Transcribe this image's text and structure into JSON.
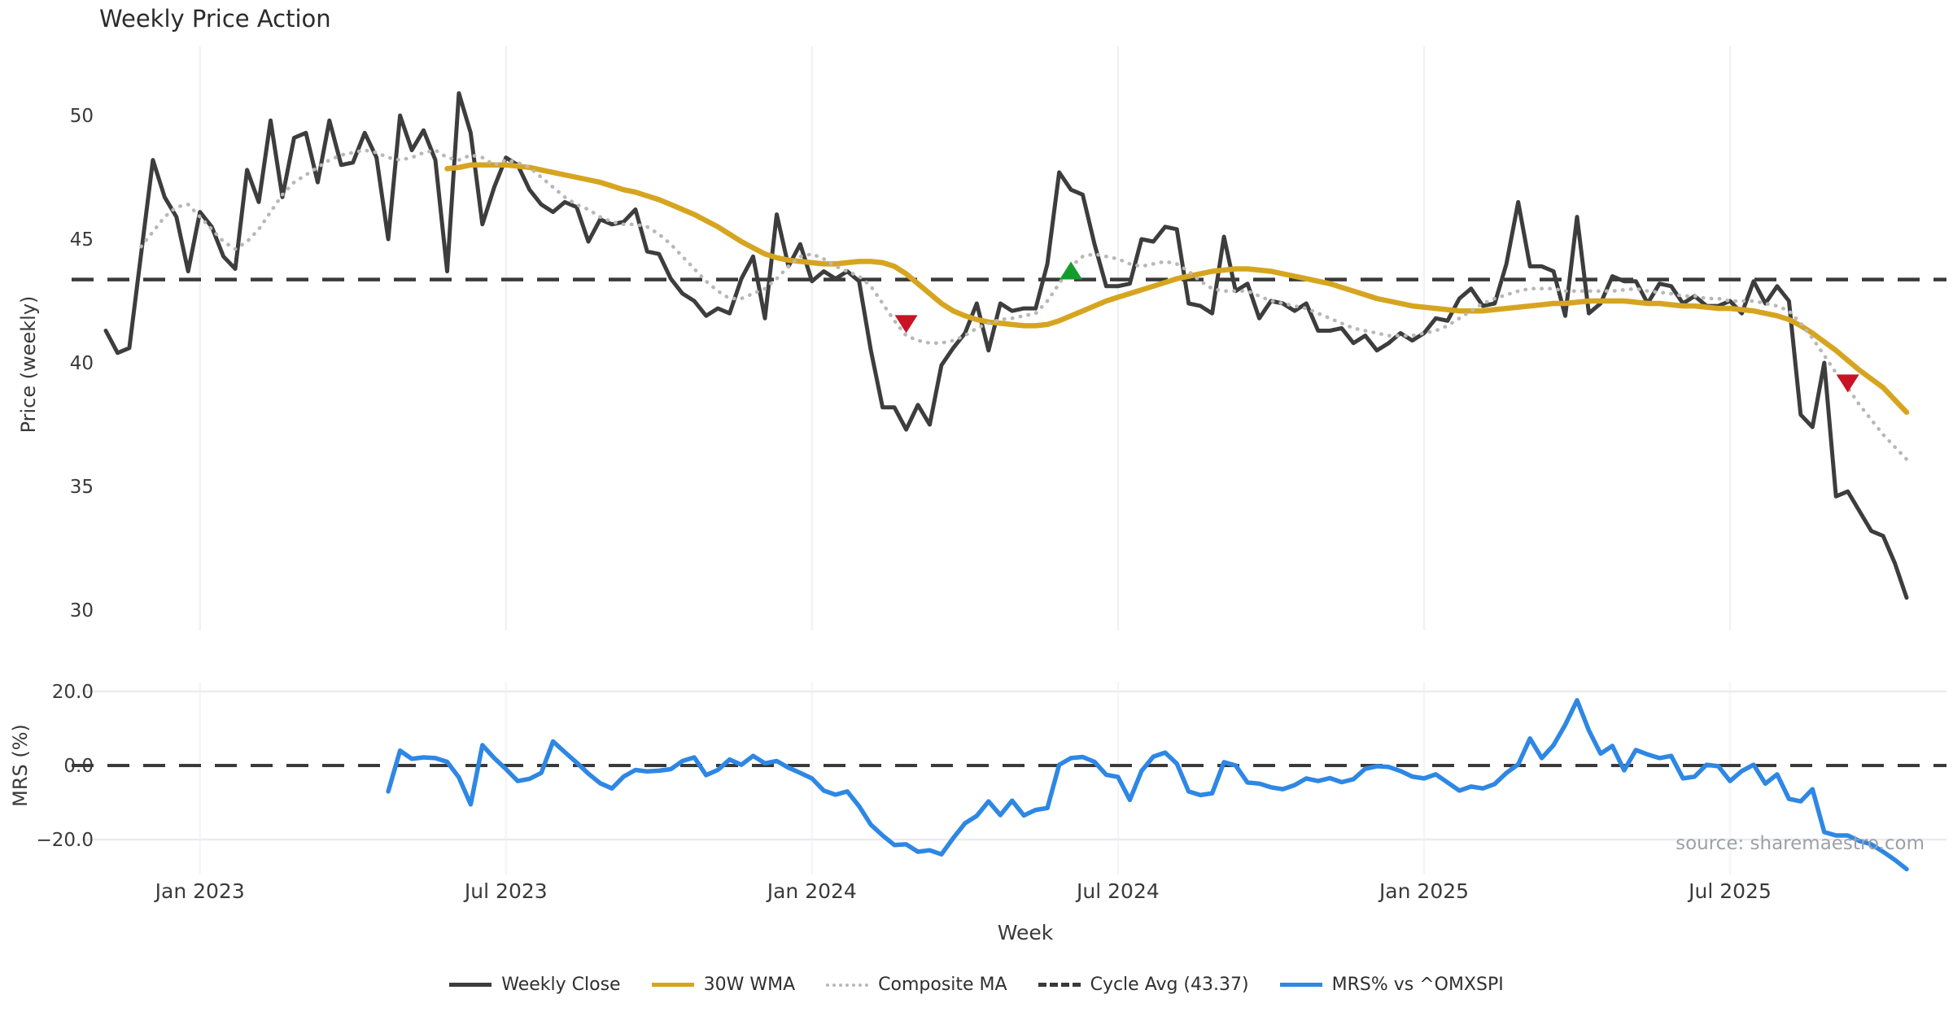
{
  "title": "Weekly Price Action",
  "source_note": "source: sharemaestro.com",
  "axes": {
    "x_label": "Week",
    "price_axis_label": "Price (weekly)",
    "mrs_axis_label": "MRS (%)"
  },
  "legend": [
    {
      "label": "Weekly Close",
      "style": "solid",
      "color": "#3d3d3d"
    },
    {
      "label": "30W WMA",
      "style": "solid",
      "color": "#d6a520"
    },
    {
      "label": "Composite MA",
      "style": "dotted",
      "color": "#b8b8b8"
    },
    {
      "label": "Cycle Avg (43.37)",
      "style": "dashed",
      "color": "#3a3a3a"
    },
    {
      "label": "MRS% vs ^OMXSPI",
      "style": "solid",
      "color": "#2e87e4"
    }
  ],
  "chart_data": {
    "type": "line",
    "title": "Weekly Price Action",
    "xlabel": "Week",
    "n_weeks": 154,
    "x_tick_labels": [
      "Jan 2023",
      "Jul 2023",
      "Jan 2024",
      "Jul 2024",
      "Jan 2025",
      "Jul 2025"
    ],
    "x_tick_indices": [
      8,
      34,
      60,
      86,
      112,
      138
    ],
    "cycle_avg": 43.37,
    "panels": [
      {
        "name": "price",
        "ylabel": "Price (weekly)",
        "ylim": [
          29.5,
          52.5
        ],
        "yticks": [
          30,
          35,
          40,
          45,
          50
        ],
        "ytick_labels": [
          "30",
          "35",
          "40",
          "45",
          "50"
        ],
        "grid": "vertical"
      },
      {
        "name": "mrs",
        "ylabel": "MRS (%)",
        "ylim": [
          -30,
          23
        ],
        "yticks": [
          -20,
          0,
          20
        ],
        "ytick_labels": [
          "−20.0",
          "0.0",
          "20.0"
        ],
        "grid": "horizontal",
        "zero_line": 0
      }
    ],
    "series": [
      {
        "name": "Weekly Close",
        "panel": "price",
        "color": "#3d3d3d",
        "line_style": "solid",
        "width": 5,
        "start_index": 0,
        "values": [
          41.3,
          40.4,
          40.6,
          44.4,
          48.2,
          46.7,
          45.9,
          43.7,
          46.1,
          45.5,
          44.3,
          43.8,
          47.8,
          46.5,
          49.8,
          46.7,
          49.1,
          49.3,
          47.3,
          49.8,
          48.0,
          48.1,
          49.3,
          48.3,
          45.0,
          50.0,
          48.6,
          49.4,
          48.2,
          43.7,
          50.9,
          49.3,
          45.6,
          47.1,
          48.3,
          48.0,
          47.0,
          46.4,
          46.1,
          46.5,
          46.3,
          44.9,
          45.8,
          45.6,
          45.7,
          46.2,
          44.5,
          44.4,
          43.4,
          42.8,
          42.5,
          41.9,
          42.2,
          42.0,
          43.4,
          44.3,
          41.8,
          46.0,
          43.9,
          44.8,
          43.3,
          43.7,
          43.4,
          43.7,
          43.3,
          40.5,
          38.2,
          38.2,
          37.3,
          38.3,
          37.5,
          39.9,
          40.6,
          41.2,
          42.4,
          40.5,
          42.4,
          42.1,
          42.2,
          42.2,
          44.0,
          47.7,
          47.0,
          46.8,
          44.8,
          43.1,
          43.1,
          43.2,
          45.0,
          44.9,
          45.5,
          45.4,
          42.4,
          42.3,
          42.0,
          45.1,
          42.9,
          43.2,
          41.8,
          42.5,
          42.4,
          42.1,
          42.4,
          41.3,
          41.3,
          41.4,
          40.8,
          41.1,
          40.5,
          40.8,
          41.2,
          40.9,
          41.2,
          41.8,
          41.7,
          42.6,
          43.0,
          42.3,
          42.4,
          44.0,
          46.5,
          43.9,
          43.9,
          43.7,
          41.9,
          45.9,
          42.0,
          42.4,
          43.5,
          43.3,
          43.3,
          42.4,
          43.2,
          43.1,
          42.4,
          42.7,
          42.3,
          42.3,
          42.5,
          42.0,
          43.3,
          42.4,
          43.1,
          42.5,
          37.9,
          37.4,
          40.0,
          34.6,
          34.8,
          34.0,
          33.2,
          33.0,
          31.9,
          30.5
        ]
      },
      {
        "name": "30W WMA",
        "panel": "price",
        "color": "#d6a520",
        "line_style": "solid",
        "width": 6.5,
        "start_index": 29,
        "values": [
          47.85,
          47.9,
          48.0,
          48.0,
          48.0,
          48.0,
          47.95,
          47.9,
          47.8,
          47.7,
          47.6,
          47.5,
          47.4,
          47.3,
          47.15,
          47.0,
          46.9,
          46.75,
          46.6,
          46.4,
          46.2,
          46.0,
          45.75,
          45.5,
          45.2,
          44.9,
          44.65,
          44.4,
          44.25,
          44.15,
          44.1,
          44.05,
          44.0,
          44.0,
          44.05,
          44.1,
          44.1,
          44.05,
          43.9,
          43.6,
          43.2,
          42.8,
          42.4,
          42.1,
          41.9,
          41.75,
          41.65,
          41.6,
          41.55,
          41.5,
          41.5,
          41.55,
          41.7,
          41.9,
          42.1,
          42.3,
          42.5,
          42.65,
          42.8,
          42.95,
          43.1,
          43.25,
          43.4,
          43.5,
          43.6,
          43.7,
          43.75,
          43.8,
          43.8,
          43.75,
          43.7,
          43.6,
          43.5,
          43.4,
          43.3,
          43.2,
          43.05,
          42.9,
          42.75,
          42.6,
          42.5,
          42.4,
          42.3,
          42.25,
          42.2,
          42.15,
          42.1,
          42.1,
          42.1,
          42.15,
          42.2,
          42.25,
          42.3,
          42.35,
          42.4,
          42.4,
          42.45,
          42.5,
          42.5,
          42.5,
          42.5,
          42.45,
          42.4,
          42.4,
          42.35,
          42.3,
          42.3,
          42.25,
          42.2,
          42.2,
          42.15,
          42.1,
          42.0,
          41.9,
          41.75,
          41.5,
          41.2,
          40.85,
          40.5,
          40.1,
          39.7,
          39.35,
          39.0,
          38.5,
          38.0
        ]
      },
      {
        "name": "Composite MA",
        "panel": "price",
        "color": "#b8b8b8",
        "line_style": "dotted",
        "width": 4.5,
        "start_index": 3,
        "values": [
          44.7,
          45.3,
          45.9,
          46.3,
          46.4,
          45.9,
          45.4,
          44.9,
          44.6,
          44.9,
          45.4,
          46.1,
          46.8,
          47.3,
          47.6,
          47.9,
          48.2,
          48.4,
          48.5,
          48.6,
          48.5,
          48.3,
          48.2,
          48.3,
          48.5,
          48.6,
          48.3,
          48.2,
          48.4,
          48.3,
          48.0,
          48.2,
          48.1,
          47.9,
          47.5,
          47.1,
          46.7,
          46.4,
          46.2,
          45.9,
          45.7,
          45.6,
          45.6,
          45.5,
          45.2,
          44.8,
          44.3,
          43.8,
          43.3,
          42.9,
          42.6,
          42.6,
          42.8,
          43.0,
          43.4,
          43.9,
          44.3,
          44.4,
          44.2,
          43.9,
          43.7,
          43.5,
          43.1,
          42.4,
          41.7,
          41.1,
          40.9,
          40.8,
          40.8,
          40.9,
          41.1,
          41.4,
          41.6,
          41.75,
          41.8,
          41.9,
          42.0,
          42.5,
          43.2,
          43.9,
          44.3,
          44.4,
          44.3,
          44.2,
          44.0,
          43.9,
          44.0,
          44.1,
          44.0,
          43.7,
          43.3,
          43.0,
          42.9,
          42.9,
          42.9,
          42.7,
          42.5,
          42.4,
          42.3,
          42.2,
          42.0,
          41.8,
          41.6,
          41.4,
          41.3,
          41.2,
          41.1,
          41.1,
          41.1,
          41.2,
          41.3,
          41.5,
          41.8,
          42.1,
          42.4,
          42.6,
          42.75,
          42.9,
          43.0,
          43.0,
          43.0,
          42.9,
          42.9,
          42.9,
          42.9,
          42.9,
          42.95,
          43.0,
          42.9,
          42.85,
          42.8,
          42.7,
          42.7,
          42.6,
          42.6,
          42.5,
          42.5,
          42.5,
          42.4,
          42.3,
          42.1,
          41.6,
          41.0,
          40.3,
          39.6,
          39.0,
          38.3,
          37.7,
          37.1,
          36.6,
          36.1
        ]
      },
      {
        "name": "MRS% vs ^OMXSPI",
        "panel": "mrs",
        "color": "#2e87e4",
        "line_style": "solid",
        "width": 5.5,
        "start_index": 24,
        "values": [
          -7.0,
          4.0,
          1.8,
          2.2,
          2.0,
          1.0,
          -3.2,
          -10.5,
          5.5,
          2.0,
          -1.0,
          -4.2,
          -3.6,
          -2.0,
          6.5,
          3.6,
          0.8,
          -2.2,
          -4.8,
          -6.2,
          -3.0,
          -1.2,
          -1.6,
          -1.4,
          -1.0,
          1.2,
          2.2,
          -2.6,
          -1.2,
          1.6,
          0.2,
          2.6,
          0.6,
          1.2,
          -0.6,
          -2.0,
          -3.5,
          -6.8,
          -7.9,
          -7.0,
          -11.0,
          -16.0,
          -18.9,
          -21.5,
          -21.3,
          -23.3,
          -22.9,
          -24.0,
          -19.6,
          -15.6,
          -13.6,
          -9.7,
          -13.4,
          -9.5,
          -13.5,
          -12.0,
          -11.5,
          0.2,
          2.0,
          2.3,
          1.0,
          -2.5,
          -3.1,
          -9.3,
          -1.5,
          2.4,
          3.5,
          0.5,
          -7.0,
          -8.0,
          -7.5,
          0.9,
          0.0,
          -4.6,
          -4.9,
          -5.9,
          -6.4,
          -5.3,
          -3.5,
          -4.2,
          -3.4,
          -4.5,
          -3.7,
          -0.9,
          -0.2,
          -0.4,
          -1.5,
          -3.0,
          -3.5,
          -2.4,
          -4.6,
          -6.8,
          -5.7,
          -6.2,
          -5.0,
          -2.0,
          0.3,
          7.3,
          2.0,
          5.5,
          11.0,
          17.6,
          9.5,
          3.2,
          5.3,
          -1.3,
          4.2,
          3.0,
          2.0,
          2.6,
          -3.5,
          -3.0,
          0.2,
          -0.2,
          -4.2,
          -1.5,
          0.2,
          -4.9,
          -2.4,
          -9.0,
          -9.7,
          -6.4,
          -18.0,
          -18.9,
          -18.9,
          -20.4,
          -21.3,
          -23.3,
          -25.5,
          -28.0
        ]
      }
    ],
    "markers": [
      {
        "index": 68,
        "price": 41.6,
        "direction": "down",
        "color": "#c81425",
        "meaning": "sell-signal"
      },
      {
        "index": 82,
        "price": 43.7,
        "direction": "up",
        "color": "#169c2c",
        "meaning": "buy-signal"
      },
      {
        "index": 148,
        "price": 39.2,
        "direction": "down",
        "color": "#c81425",
        "meaning": "sell-signal"
      }
    ]
  }
}
